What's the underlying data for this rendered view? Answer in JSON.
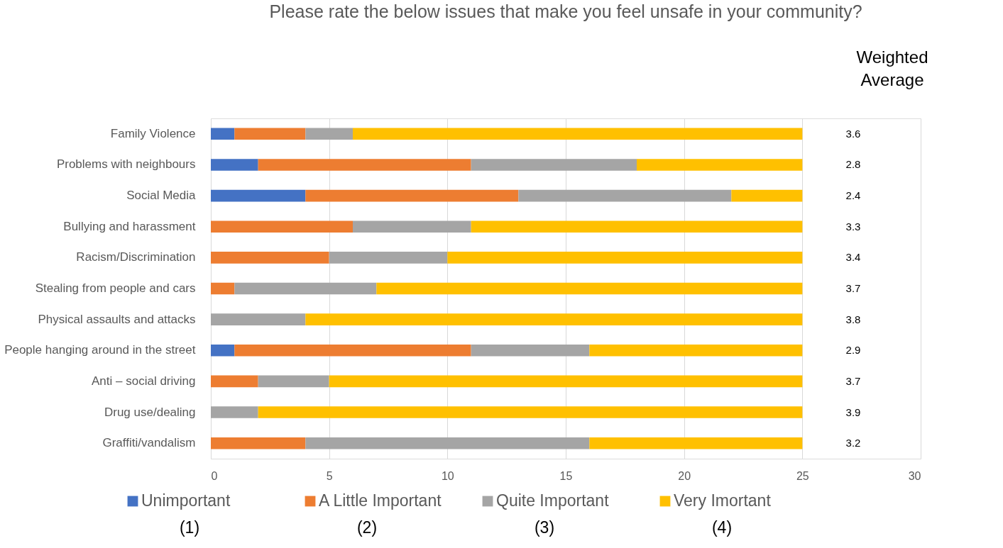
{
  "chart_data": {
    "type": "bar",
    "orientation": "horizontal",
    "stacked": true,
    "title": "Please rate the below issues that make you feel unsafe in your community?",
    "categories": [
      "Family Violence",
      "Problems with neighbours",
      "Social Media",
      "Bullying and harassment",
      "Racism/Discrimination",
      "Stealing from people and cars",
      "Physical assaults and attacks",
      "People hanging around in the street",
      "Anti – social driving",
      "Drug use/dealing",
      "Graffiti/vandalism"
    ],
    "series": [
      {
        "name": "Unimportant",
        "color": "#4472c4",
        "values": [
          1,
          2,
          4,
          0,
          0,
          0,
          0,
          1,
          0,
          0,
          0
        ]
      },
      {
        "name": "A Little Important",
        "color": "#ed7d31",
        "values": [
          3,
          9,
          9,
          6,
          5,
          1,
          0,
          10,
          2,
          0,
          4
        ]
      },
      {
        "name": "Quite Important",
        "color": "#a5a5a5",
        "values": [
          2,
          7,
          9,
          5,
          5,
          6,
          4,
          5,
          3,
          2,
          12
        ]
      },
      {
        "name": "Very Imortant",
        "color": "#ffc000",
        "values": [
          19,
          7,
          3,
          14,
          15,
          18,
          21,
          9,
          20,
          23,
          9
        ]
      }
    ],
    "xlim": [
      0,
      30
    ],
    "xticks": [
      0,
      5,
      10,
      15,
      20,
      25,
      30
    ],
    "grid": "x",
    "legend": "bottom",
    "annotations": [
      "Weighted Average",
      "(1)",
      "(2)",
      "(3)",
      "(4)",
      "3.6",
      "2.8",
      "2.4",
      "3.3",
      "3.4",
      "3.7",
      "3.8",
      "2.9",
      "3.7",
      "3.9",
      "3.2"
    ]
  }
}
